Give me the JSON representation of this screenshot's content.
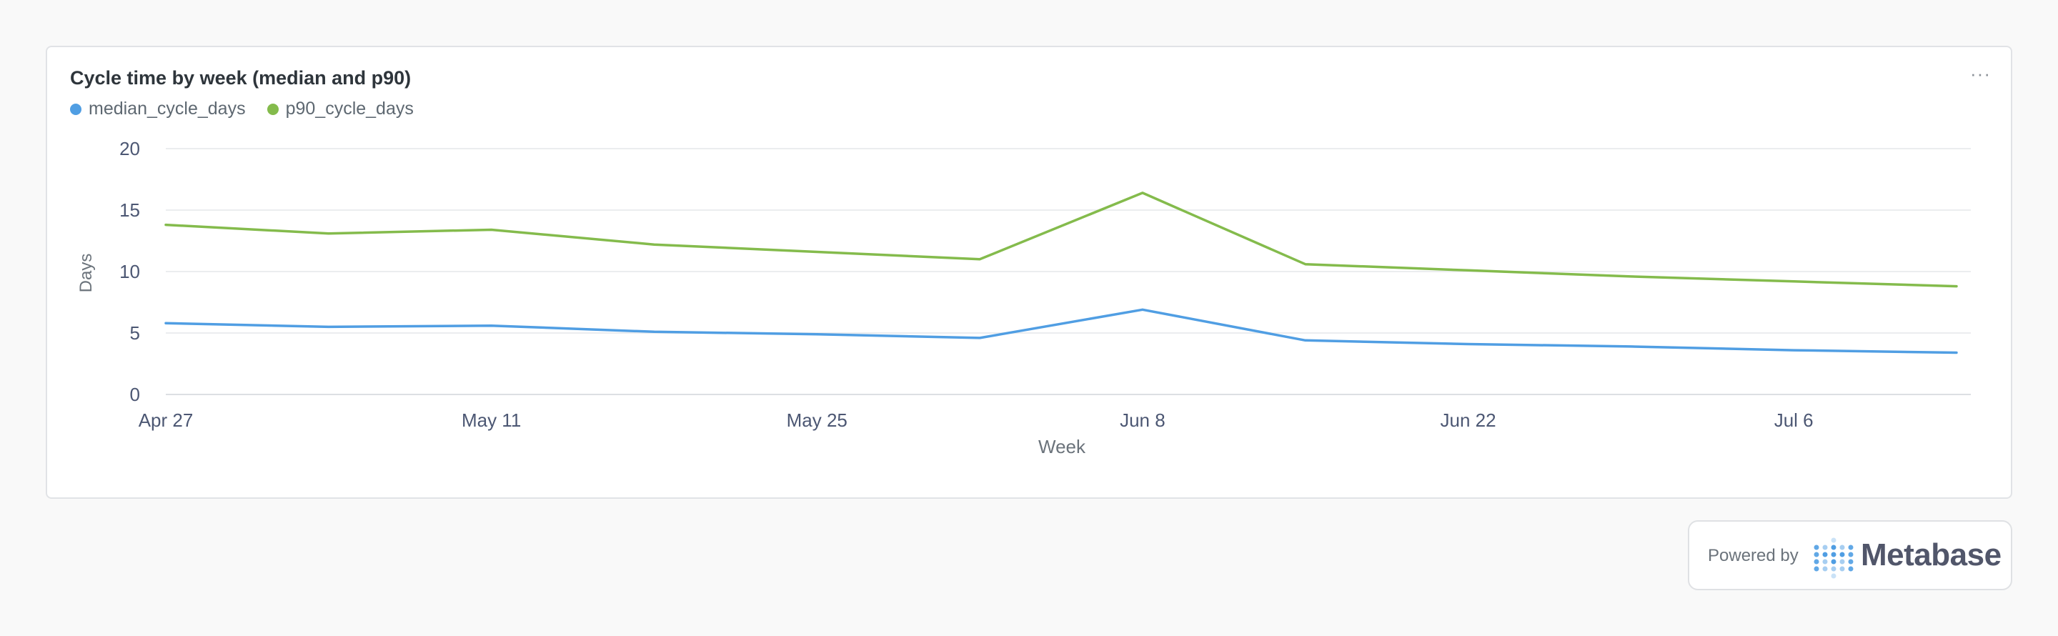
{
  "card": {
    "title": "Cycle time by week (median and p90)",
    "menu_label": "···"
  },
  "footer": {
    "powered_by": "Powered by",
    "brand": "Metabase"
  },
  "colors": {
    "median": "#509ee3",
    "p90": "#84bb4c",
    "grid": "#ebedef",
    "axis_text": "#4c5773"
  },
  "chart_data": {
    "type": "line",
    "title": "Cycle time by week (median and p90)",
    "xlabel": "Week",
    "ylabel": "Days",
    "ylim": [
      0,
      20
    ],
    "yticks": [
      0,
      5,
      10,
      15,
      20
    ],
    "xticks": [
      "Apr 27",
      "May 11",
      "May 25",
      "Jun 8",
      "Jun 22",
      "Jul 6"
    ],
    "x": [
      "Apr 27",
      "May 4",
      "May 11",
      "May 18",
      "May 25",
      "Jun 1",
      "Jun 8",
      "Jun 15",
      "Jun 22",
      "Jun 29",
      "Jul 6",
      "Jul 13"
    ],
    "grid": true,
    "legend_position": "top-left",
    "series": [
      {
        "name": "median_cycle_days",
        "values": [
          5.8,
          5.5,
          5.6,
          5.1,
          4.9,
          4.6,
          6.9,
          4.4,
          4.1,
          3.9,
          3.6,
          3.4
        ]
      },
      {
        "name": "p90_cycle_days",
        "values": [
          13.8,
          13.1,
          13.4,
          12.2,
          11.6,
          11.0,
          16.4,
          10.6,
          10.1,
          9.6,
          9.2,
          8.8
        ]
      }
    ]
  }
}
